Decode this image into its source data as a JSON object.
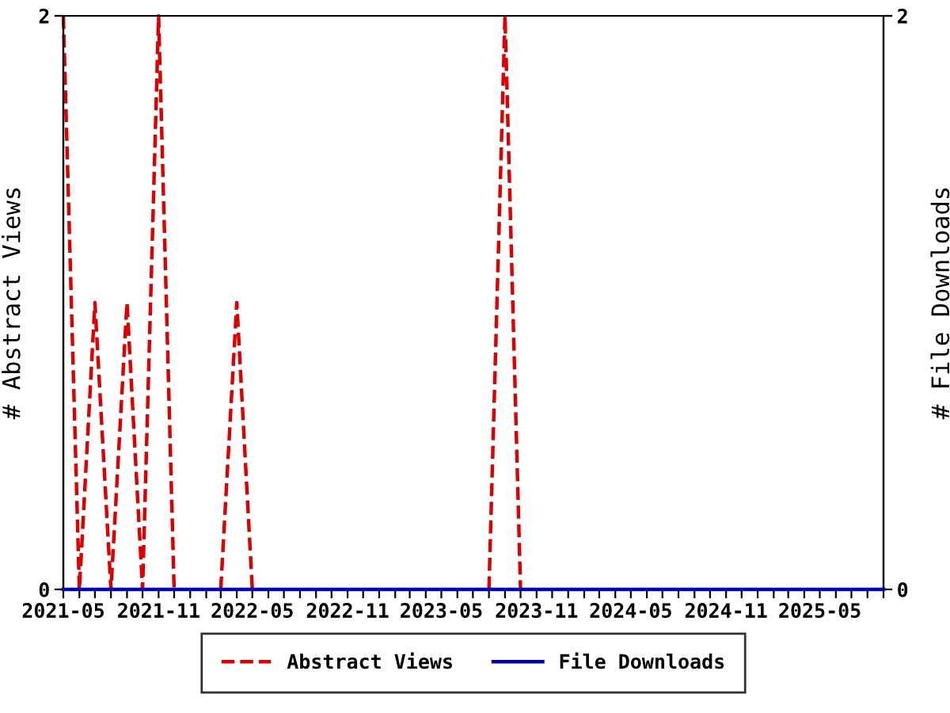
{
  "chart_data": {
    "type": "line",
    "ylabel": "# Abstract Views",
    "y2label": "# File Downloads",
    "x": [
      "2021-05",
      "2021-06",
      "2021-07",
      "2021-08",
      "2021-09",
      "2021-10",
      "2021-11",
      "2021-12",
      "2022-01",
      "2022-02",
      "2022-03",
      "2022-04",
      "2022-05",
      "2022-06",
      "2022-07",
      "2022-08",
      "2022-09",
      "2022-10",
      "2022-11",
      "2022-12",
      "2023-01",
      "2023-02",
      "2023-03",
      "2023-04",
      "2023-05",
      "2023-06",
      "2023-07",
      "2023-08",
      "2023-09",
      "2023-10",
      "2023-11",
      "2023-12",
      "2024-01",
      "2024-02",
      "2024-03",
      "2024-04",
      "2024-05",
      "2024-06",
      "2024-07",
      "2024-08",
      "2024-09",
      "2024-10",
      "2024-11",
      "2024-12",
      "2025-01",
      "2025-02",
      "2025-03",
      "2025-04",
      "2025-05",
      "2025-06",
      "2025-07",
      "2025-08",
      "2025-09"
    ],
    "series": [
      {
        "name": "Abstract Views",
        "color": "#dd0000",
        "line_style": "dashed",
        "values": [
          2,
          0,
          1,
          0,
          1,
          0,
          2,
          0,
          null,
          null,
          0,
          1,
          0,
          null,
          null,
          null,
          null,
          null,
          null,
          null,
          null,
          null,
          null,
          null,
          null,
          null,
          null,
          0,
          2,
          0,
          null,
          null,
          null,
          null,
          null,
          null,
          null,
          null,
          null,
          null,
          null,
          null,
          null,
          null,
          null,
          null,
          null,
          null,
          null,
          null,
          null,
          null,
          null
        ]
      },
      {
        "name": "File Downloads",
        "color": "#0000aa",
        "line_style": "solid",
        "axis": "y2",
        "values": [
          0,
          0,
          0,
          0,
          0,
          0,
          0,
          0,
          0,
          0,
          0,
          0,
          0,
          0,
          0,
          0,
          0,
          0,
          0,
          0,
          0,
          0,
          0,
          0,
          0,
          0,
          0,
          0,
          0,
          0,
          0,
          0,
          0,
          0,
          0,
          0,
          0,
          0,
          0,
          0,
          0,
          0,
          0,
          0,
          0,
          0,
          0,
          0,
          0,
          0,
          0,
          0,
          0
        ]
      }
    ],
    "xlim": [
      "2021-05",
      "2025-09"
    ],
    "xticks": [
      {
        "value": "2021-05",
        "label": "2021-05"
      },
      {
        "value": "2021-06",
        "label": null
      },
      {
        "value": "2021-07",
        "label": null
      },
      {
        "value": "2021-08",
        "label": null
      },
      {
        "value": "2021-09",
        "label": null
      },
      {
        "value": "2021-10",
        "label": null
      },
      {
        "value": "2021-11",
        "label": "2021-11"
      },
      {
        "value": "2021-12",
        "label": null
      },
      {
        "value": "2022-01",
        "label": null
      },
      {
        "value": "2022-02",
        "label": null
      },
      {
        "value": "2022-03",
        "label": null
      },
      {
        "value": "2022-04",
        "label": null
      },
      {
        "value": "2022-05",
        "label": "2022-05"
      },
      {
        "value": "2022-06",
        "label": null
      },
      {
        "value": "2022-07",
        "label": null
      },
      {
        "value": "2022-08",
        "label": null
      },
      {
        "value": "2022-09",
        "label": null
      },
      {
        "value": "2022-10",
        "label": null
      },
      {
        "value": "2022-11",
        "label": "2022-11"
      },
      {
        "value": "2022-12",
        "label": null
      },
      {
        "value": "2023-01",
        "label": null
      },
      {
        "value": "2023-02",
        "label": null
      },
      {
        "value": "2023-03",
        "label": null
      },
      {
        "value": "2023-04",
        "label": null
      },
      {
        "value": "2023-05",
        "label": "2023-05"
      },
      {
        "value": "2023-06",
        "label": null
      },
      {
        "value": "2023-07",
        "label": null
      },
      {
        "value": "2023-08",
        "label": null
      },
      {
        "value": "2023-09",
        "label": null
      },
      {
        "value": "2023-10",
        "label": null
      },
      {
        "value": "2023-11",
        "label": "2023-11"
      },
      {
        "value": "2023-12",
        "label": null
      },
      {
        "value": "2024-01",
        "label": null
      },
      {
        "value": "2024-02",
        "label": null
      },
      {
        "value": "2024-03",
        "label": null
      },
      {
        "value": "2024-04",
        "label": null
      },
      {
        "value": "2024-05",
        "label": "2024-05"
      },
      {
        "value": "2024-06",
        "label": null
      },
      {
        "value": "2024-07",
        "label": null
      },
      {
        "value": "2024-08",
        "label": null
      },
      {
        "value": "2024-09",
        "label": null
      },
      {
        "value": "2024-10",
        "label": null
      },
      {
        "value": "2024-11",
        "label": "2024-11"
      },
      {
        "value": "2024-12",
        "label": null
      },
      {
        "value": "2025-01",
        "label": null
      },
      {
        "value": "2025-02",
        "label": null
      },
      {
        "value": "2025-03",
        "label": null
      },
      {
        "value": "2025-04",
        "label": null
      },
      {
        "value": "2025-05",
        "label": "2025-05"
      },
      {
        "value": "2025-06",
        "label": null
      },
      {
        "value": "2025-07",
        "label": null
      },
      {
        "value": "2025-08",
        "label": null
      },
      {
        "value": "2025-09",
        "label": null
      }
    ],
    "ylim": [
      0,
      2
    ],
    "yticks": [
      0,
      2
    ],
    "y2lim": [
      0,
      2
    ],
    "y2ticks": [
      0,
      2
    ],
    "grid": false,
    "legend": "bottom",
    "marker": "none"
  }
}
